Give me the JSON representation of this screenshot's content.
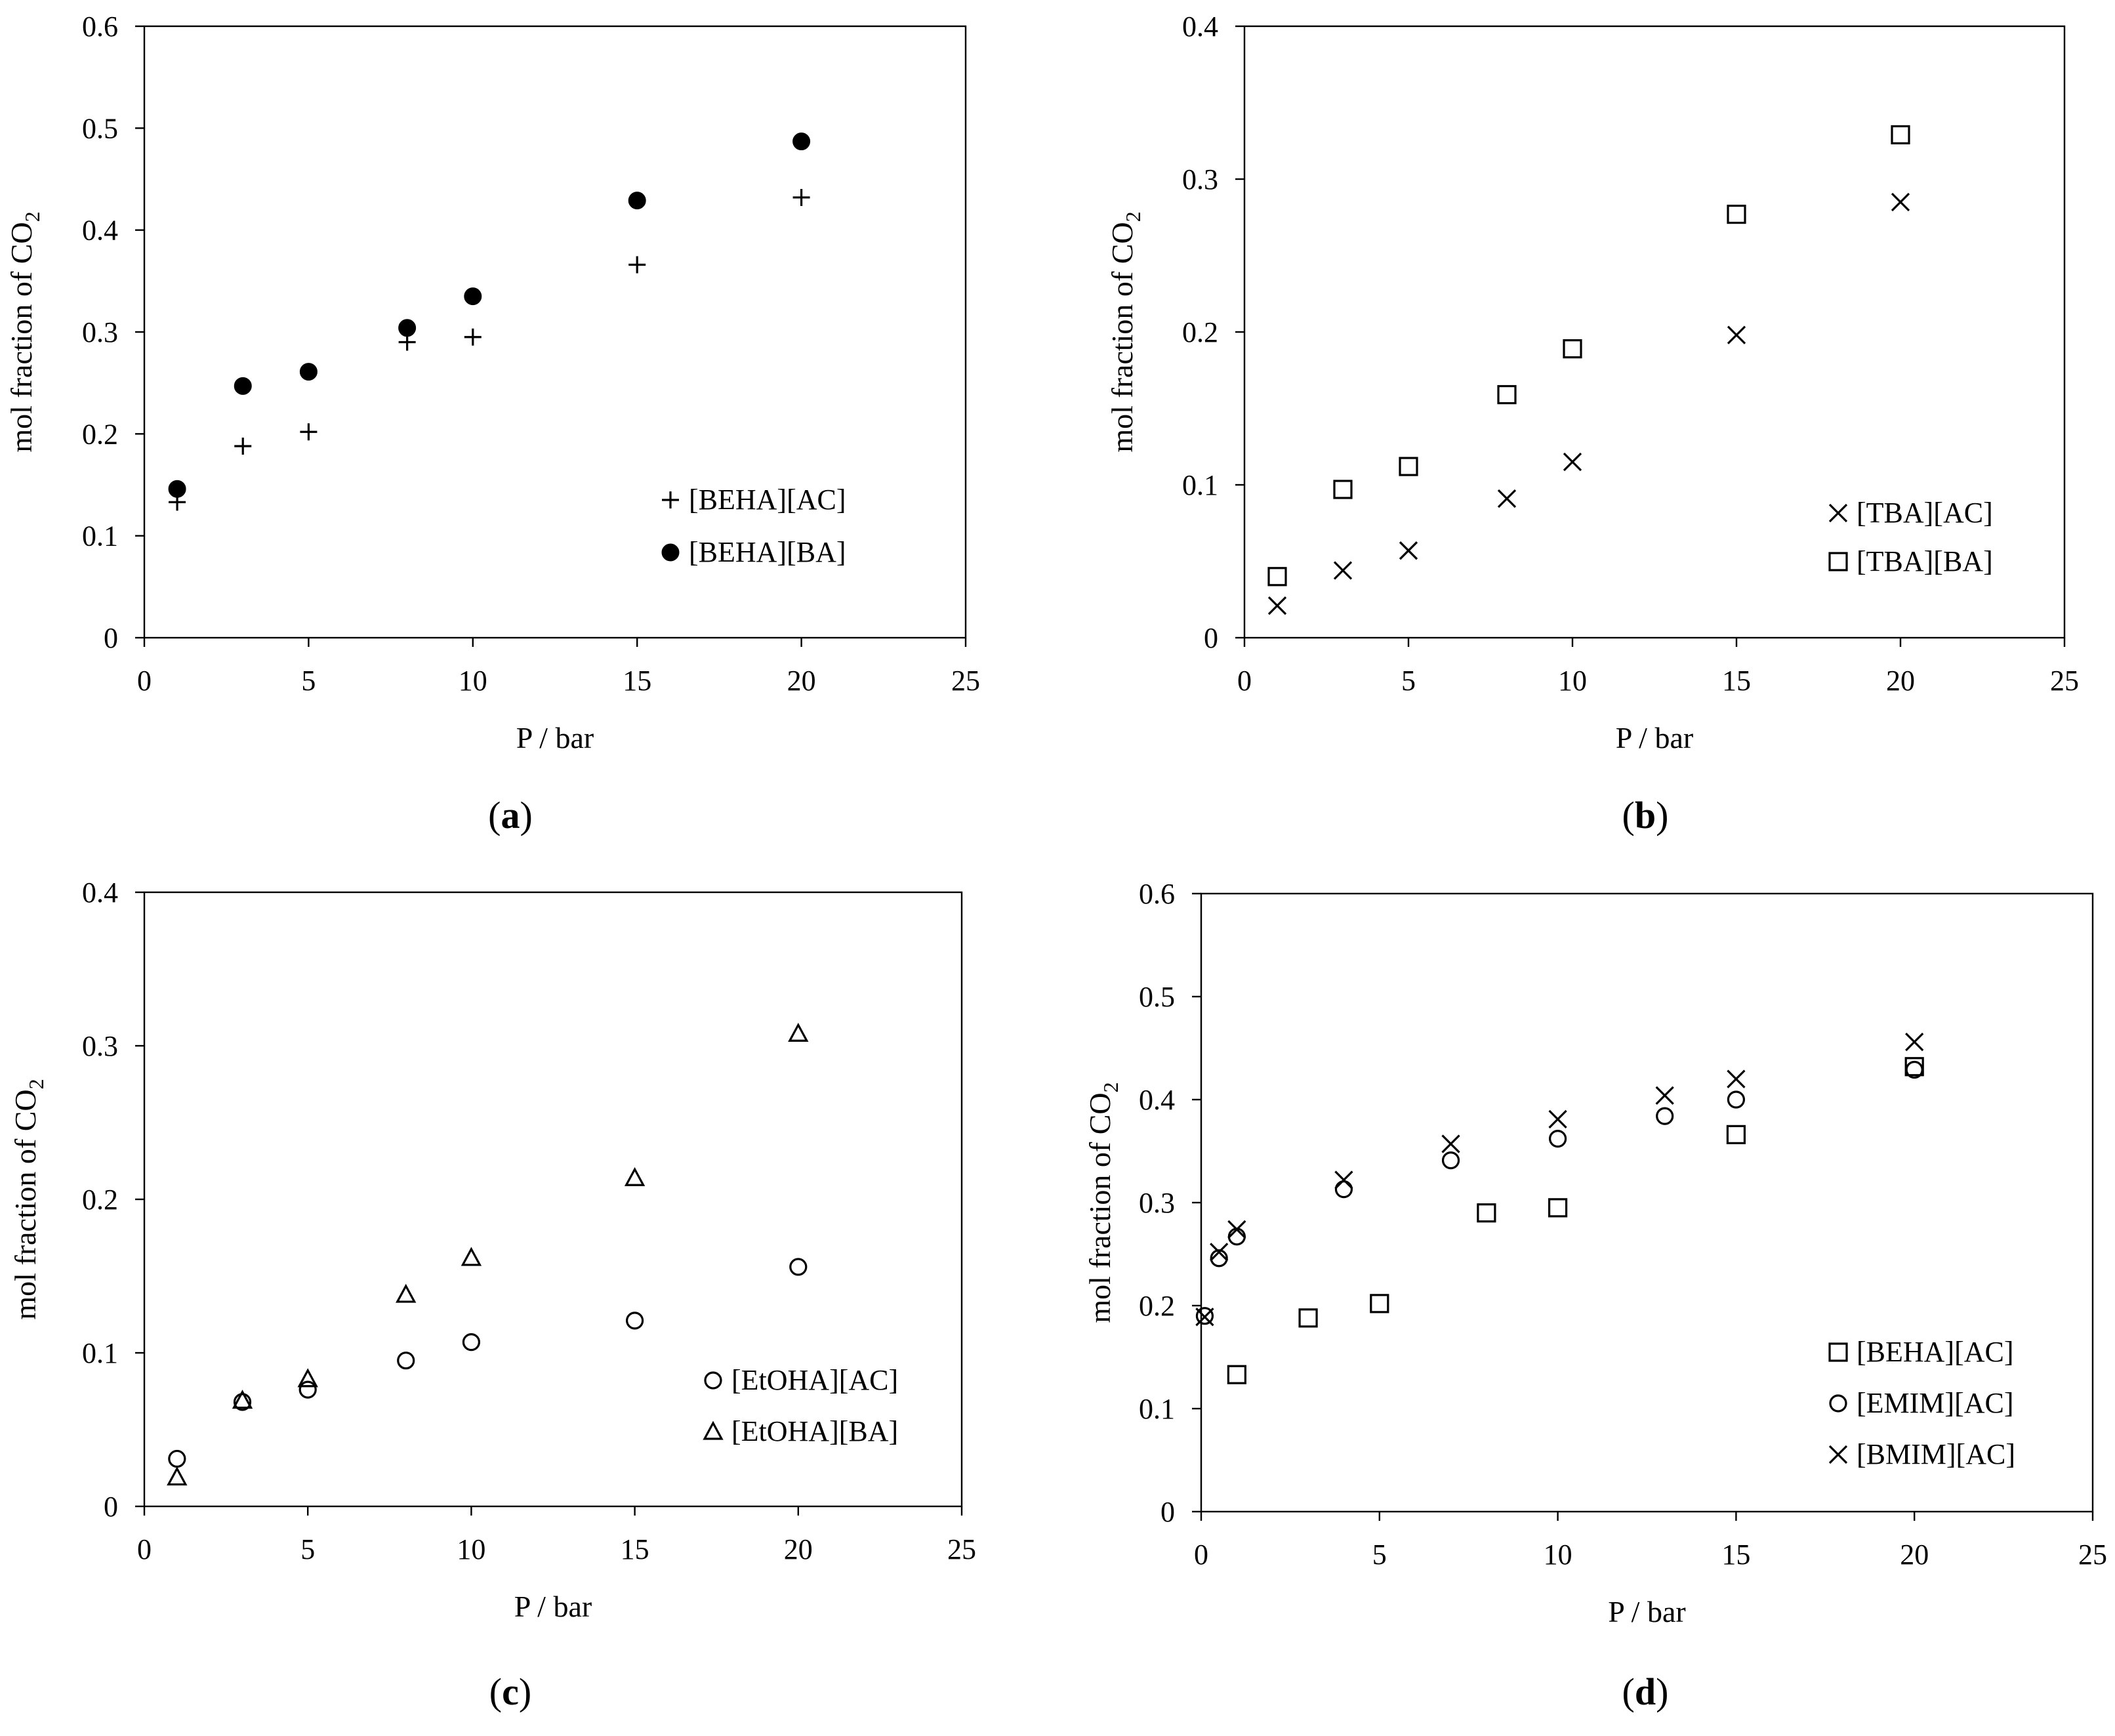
{
  "chart_data": [
    {
      "id": "a",
      "type": "scatter",
      "caption_letter": "a",
      "xlabel": "P / bar",
      "ylabel": "mol fraction of CO",
      "ylabel_subscript": "2",
      "xlim": [
        0,
        25
      ],
      "ylim": [
        0,
        0.6
      ],
      "xticks": [
        "0",
        "5",
        "10",
        "15",
        "20",
        "25"
      ],
      "yticks": [
        "0",
        "0.1",
        "0.2",
        "0.3",
        "0.4",
        "0.5",
        "0.6"
      ],
      "series": [
        {
          "name": "[BEHA][AC]",
          "marker": "plus",
          "x": [
            1,
            3,
            5,
            8,
            10,
            15,
            20
          ],
          "y": [
            0.133,
            0.188,
            0.202,
            0.29,
            0.295,
            0.366,
            0.432
          ]
        },
        {
          "name": "[BEHA][BA]",
          "marker": "filled-circle",
          "x": [
            1,
            3,
            5,
            8,
            10,
            15,
            20
          ],
          "y": [
            0.146,
            0.247,
            0.261,
            0.304,
            0.335,
            0.429,
            0.487
          ]
        }
      ]
    },
    {
      "id": "b",
      "type": "scatter",
      "caption_letter": "b",
      "xlabel": "P / bar",
      "ylabel": "mol fraction of CO",
      "ylabel_subscript": "2",
      "xlim": [
        0,
        25
      ],
      "ylim": [
        0,
        0.4
      ],
      "xticks": [
        "0",
        "5",
        "10",
        "15",
        "20",
        "25"
      ],
      "yticks": [
        "0",
        "0.1",
        "0.2",
        "0.3",
        "0.4"
      ],
      "series": [
        {
          "name": "[TBA][AC]",
          "marker": "cross",
          "x": [
            1,
            3,
            5,
            8,
            10,
            15,
            20
          ],
          "y": [
            0.021,
            0.044,
            0.057,
            0.091,
            0.115,
            0.198,
            0.285
          ]
        },
        {
          "name": "[TBA][BA]",
          "marker": "open-square",
          "x": [
            1,
            3,
            5,
            8,
            10,
            15,
            20
          ],
          "y": [
            0.04,
            0.097,
            0.112,
            0.159,
            0.189,
            0.277,
            0.329
          ]
        }
      ]
    },
    {
      "id": "c",
      "type": "scatter",
      "caption_letter": "c",
      "xlabel": "P / bar",
      "ylabel": "mol fraction of CO",
      "ylabel_subscript": "2",
      "xlim": [
        0,
        25
      ],
      "ylim": [
        0,
        0.4
      ],
      "xticks": [
        "0",
        "5",
        "10",
        "15",
        "20",
        "25"
      ],
      "yticks": [
        "0",
        "0.1",
        "0.2",
        "0.3",
        "0.4"
      ],
      "series": [
        {
          "name": "[EtOHA][AC]",
          "marker": "open-circle",
          "x": [
            1,
            3,
            5,
            8,
            10,
            15,
            20
          ],
          "y": [
            0.031,
            0.068,
            0.076,
            0.095,
            0.107,
            0.121,
            0.156
          ]
        },
        {
          "name": "[EtOHA][BA]",
          "marker": "open-triangle",
          "x": [
            1,
            3,
            5,
            8,
            10,
            15,
            20
          ],
          "y": [
            0.019,
            0.069,
            0.083,
            0.138,
            0.162,
            0.214,
            0.308
          ]
        }
      ]
    },
    {
      "id": "d",
      "type": "scatter",
      "caption_letter": "d",
      "xlabel": "P / bar",
      "ylabel": "mol fraction of CO",
      "ylabel_subscript": "2",
      "xlim": [
        0,
        25
      ],
      "ylim": [
        0,
        0.6
      ],
      "xticks": [
        "0",
        "5",
        "10",
        "15",
        "20",
        "25"
      ],
      "yticks": [
        "0",
        "0.1",
        "0.2",
        "0.3",
        "0.4",
        "0.5",
        "0.6"
      ],
      "series": [
        {
          "name": "[BEHA][AC]",
          "marker": "open-square",
          "x": [
            1,
            3,
            5,
            8,
            10,
            15,
            20
          ],
          "y": [
            0.133,
            0.188,
            0.202,
            0.29,
            0.295,
            0.366,
            0.432
          ]
        },
        {
          "name": "[EMIM][AC]",
          "marker": "open-circle",
          "x": [
            0.1,
            0.5,
            1,
            4,
            7,
            10,
            13,
            15,
            20
          ],
          "y": [
            0.19,
            0.246,
            0.267,
            0.313,
            0.341,
            0.362,
            0.384,
            0.4,
            0.429
          ]
        },
        {
          "name": "[BMIM][AC]",
          "marker": "cross",
          "x": [
            0.1,
            0.5,
            1,
            4,
            7,
            10,
            13,
            15,
            20
          ],
          "y": [
            0.189,
            0.252,
            0.274,
            0.322,
            0.357,
            0.381,
            0.404,
            0.42,
            0.456
          ]
        }
      ]
    }
  ]
}
